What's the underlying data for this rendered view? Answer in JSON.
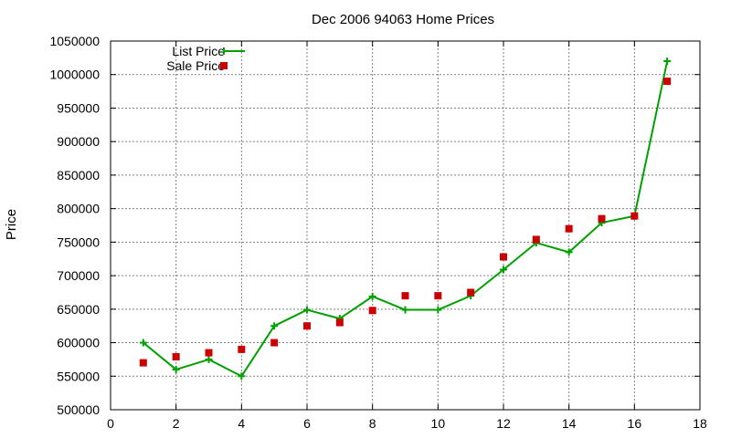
{
  "chart_data": {
    "type": "line",
    "title": "Dec 2006 94063 Home Prices",
    "xlabel": "",
    "ylabel": "Price",
    "xlim": [
      0,
      18
    ],
    "ylim": [
      500000,
      1050000
    ],
    "x_ticks": [
      0,
      2,
      4,
      6,
      8,
      10,
      12,
      14,
      16,
      18
    ],
    "y_ticks": [
      500000,
      550000,
      600000,
      650000,
      700000,
      750000,
      800000,
      850000,
      900000,
      950000,
      1000000,
      1050000
    ],
    "grid": true,
    "legend_position": "top-left",
    "series": [
      {
        "name": "List Price",
        "type": "line",
        "color": "#00a000",
        "x": [
          1,
          2,
          3,
          4,
          5,
          6,
          7,
          8,
          9,
          10,
          11,
          12,
          13,
          14,
          15,
          16,
          17
        ],
        "values": [
          600000,
          560000,
          575000,
          550000,
          625000,
          649000,
          636000,
          669000,
          649000,
          649000,
          670000,
          709000,
          749000,
          735000,
          779000,
          789000,
          1020000
        ]
      },
      {
        "name": "Sale Price",
        "type": "scatter",
        "color": "#cc0000",
        "x": [
          1,
          2,
          3,
          4,
          5,
          6,
          7,
          8,
          9,
          10,
          11,
          12,
          13,
          14,
          15,
          16,
          17
        ],
        "values": [
          570000,
          579000,
          585000,
          590000,
          600000,
          625000,
          630000,
          648000,
          670000,
          670000,
          675000,
          728000,
          754000,
          770000,
          785000,
          789000,
          990000
        ]
      }
    ]
  }
}
